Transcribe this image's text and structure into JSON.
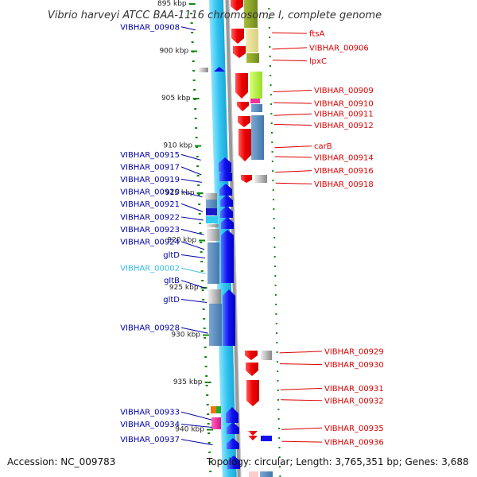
{
  "title": "Vibrio harveyi ATCC BAA-1116 chromosome I, complete genome",
  "accession": "Accession: NC_009783",
  "topology": "Topology: circular; Length: 3,765,351 bp; Genes: 3,688",
  "colors": {
    "left_label": "#0000aa",
    "right_label": "#dd0000",
    "highlight_label": "#33bbee",
    "forward_cds": "#1111ee",
    "reverse_cds": "#ee1111",
    "backbone": "#44ccf0",
    "tick": "#118811"
  },
  "ticks": [
    {
      "kbp": 895,
      "label": "895 kbp"
    },
    {
      "kbp": 900,
      "label": "900 kbp"
    },
    {
      "kbp": 905,
      "label": "905 kbp"
    },
    {
      "kbp": 910,
      "label": "910 kbp"
    },
    {
      "kbp": 915,
      "label": "915 kbp"
    },
    {
      "kbp": 920,
      "label": "920 kbp"
    },
    {
      "kbp": 925,
      "label": "925 kbp"
    },
    {
      "kbp": 930,
      "label": "930 kbp"
    },
    {
      "kbp": 935,
      "label": "935 kbp"
    },
    {
      "kbp": 940,
      "label": "940 kbp"
    }
  ],
  "left_labels": [
    {
      "text": "VIBHAR_00908",
      "kbp": 897.5,
      "highlight": false
    },
    {
      "text": "VIBHAR_00915",
      "kbp": 911.0,
      "highlight": false
    },
    {
      "text": "VIBHAR_00917",
      "kbp": 912.3,
      "highlight": false
    },
    {
      "text": "VIBHAR_00919",
      "kbp": 913.6,
      "highlight": false
    },
    {
      "text": "VIBHAR_00920",
      "kbp": 914.9,
      "highlight": false
    },
    {
      "text": "VIBHAR_00921",
      "kbp": 916.2,
      "highlight": false
    },
    {
      "text": "VIBHAR_00922",
      "kbp": 917.6,
      "highlight": false
    },
    {
      "text": "VIBHAR_00923",
      "kbp": 918.9,
      "highlight": false
    },
    {
      "text": "VIBHAR_00924",
      "kbp": 920.2,
      "highlight": false
    },
    {
      "text": "gltD",
      "kbp": 921.6,
      "highlight": false
    },
    {
      "text": "VIBHAR_00002",
      "kbp": 923.0,
      "highlight": true
    },
    {
      "text": "gltB",
      "kbp": 924.3,
      "highlight": false
    },
    {
      "text": "gltD",
      "kbp": 926.3,
      "highlight": false
    },
    {
      "text": "VIBHAR_00928",
      "kbp": 929.3,
      "highlight": false
    },
    {
      "text": "VIBHAR_00933",
      "kbp": 938.2,
      "highlight": false
    },
    {
      "text": "VIBHAR_00934",
      "kbp": 939.5,
      "highlight": false
    },
    {
      "text": "VIBHAR_00937",
      "kbp": 941.1,
      "highlight": false
    }
  ],
  "right_labels": [
    {
      "text": "ftsA",
      "kbp": 898.2
    },
    {
      "text": "VIBHAR_00906",
      "kbp": 899.7
    },
    {
      "text": "lpxC",
      "kbp": 901.1
    },
    {
      "text": "VIBHAR_00909",
      "kbp": 904.2
    },
    {
      "text": "VIBHAR_00910",
      "kbp": 905.6
    },
    {
      "text": "VIBHAR_00911",
      "kbp": 906.7
    },
    {
      "text": "VIBHAR_00912",
      "kbp": 907.9
    },
    {
      "text": "carB",
      "kbp": 910.1
    },
    {
      "text": "VIBHAR_00914",
      "kbp": 911.3
    },
    {
      "text": "VIBHAR_00916",
      "kbp": 912.7
    },
    {
      "text": "VIBHAR_00918",
      "kbp": 914.1
    },
    {
      "text": "VIBHAR_00929",
      "kbp": 931.8
    },
    {
      "text": "VIBHAR_00930",
      "kbp": 933.2
    },
    {
      "text": "VIBHAR_00931",
      "kbp": 935.7
    },
    {
      "text": "VIBHAR_00932",
      "kbp": 937.0
    },
    {
      "text": "VIBHAR_00935",
      "kbp": 939.9
    },
    {
      "text": "VIBHAR_00936",
      "kbp": 941.4
    }
  ]
}
